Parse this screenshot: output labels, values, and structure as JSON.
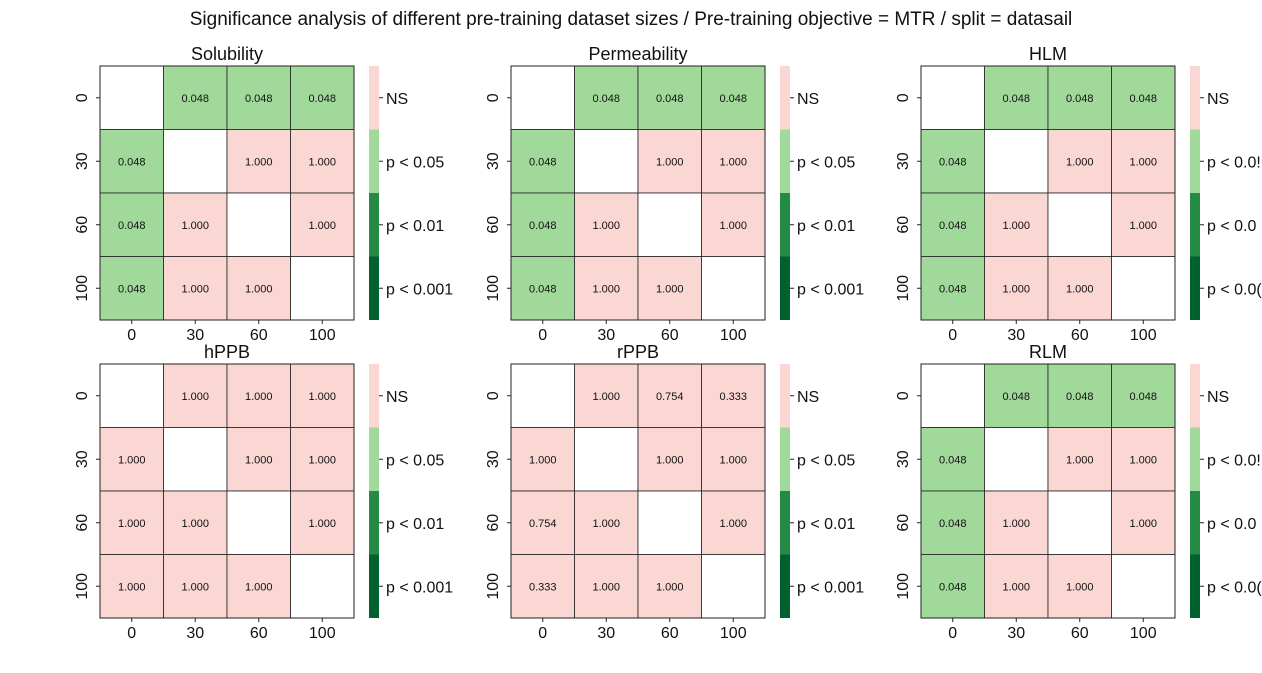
{
  "figure": {
    "title": "Significance analysis of different pre-training dataset sizes / Pre-training objective = MTR / split = datasail"
  },
  "legend": {
    "levels": [
      "NS",
      "p < 0.05",
      "p < 0.01",
      "p < 0.001"
    ],
    "colors": [
      "#fbd7d4",
      "#a1d99b",
      "#238b45",
      "#00602f"
    ],
    "diagonal_color": "#ffffff",
    "panels_with_clipped_labels": [
      "HLM",
      "RLM"
    ],
    "clipped_levels": [
      "NS",
      "p < 0.0!",
      "p < 0.0",
      "p < 0.0("
    ]
  },
  "chart_data": [
    {
      "type": "heatmap",
      "title": "Solubility",
      "x_categories": [
        "0",
        "30",
        "60",
        "100"
      ],
      "y_categories": [
        "0",
        "30",
        "60",
        "100"
      ],
      "values": [
        [
          null,
          0.048,
          0.048,
          0.048
        ],
        [
          0.048,
          null,
          1.0,
          1.0
        ],
        [
          0.048,
          1.0,
          null,
          1.0
        ],
        [
          0.048,
          1.0,
          1.0,
          null
        ]
      ],
      "labels": [
        [
          "",
          "0.048",
          "0.048",
          "0.048"
        ],
        [
          "0.048",
          "",
          "1.000",
          "1.000"
        ],
        [
          "0.048",
          "1.000",
          "",
          "1.000"
        ],
        [
          "0.048",
          "1.000",
          "1.000",
          ""
        ]
      ],
      "legend": [
        "NS",
        "p < 0.05",
        "p < 0.01",
        "p < 0.001"
      ]
    },
    {
      "type": "heatmap",
      "title": "Permeability",
      "x_categories": [
        "0",
        "30",
        "60",
        "100"
      ],
      "y_categories": [
        "0",
        "30",
        "60",
        "100"
      ],
      "values": [
        [
          null,
          0.048,
          0.048,
          0.048
        ],
        [
          0.048,
          null,
          1.0,
          1.0
        ],
        [
          0.048,
          1.0,
          null,
          1.0
        ],
        [
          0.048,
          1.0,
          1.0,
          null
        ]
      ],
      "labels": [
        [
          "",
          "0.048",
          "0.048",
          "0.048"
        ],
        [
          "0.048",
          "",
          "1.000",
          "1.000"
        ],
        [
          "0.048",
          "1.000",
          "",
          "1.000"
        ],
        [
          "0.048",
          "1.000",
          "1.000",
          ""
        ]
      ],
      "legend": [
        "NS",
        "p < 0.05",
        "p < 0.01",
        "p < 0.001"
      ]
    },
    {
      "type": "heatmap",
      "title": "HLM",
      "x_categories": [
        "0",
        "30",
        "60",
        "100"
      ],
      "y_categories": [
        "0",
        "30",
        "60",
        "100"
      ],
      "values": [
        [
          null,
          0.048,
          0.048,
          0.048
        ],
        [
          0.048,
          null,
          1.0,
          1.0
        ],
        [
          0.048,
          1.0,
          null,
          1.0
        ],
        [
          0.048,
          1.0,
          1.0,
          null
        ]
      ],
      "labels": [
        [
          "",
          "0.048",
          "0.048",
          "0.048"
        ],
        [
          "0.048",
          "",
          "1.000",
          "1.000"
        ],
        [
          "0.048",
          "1.000",
          "",
          "1.000"
        ],
        [
          "0.048",
          "1.000",
          "1.000",
          ""
        ]
      ],
      "legend": [
        "NS",
        "p < 0.0!",
        "p < 0.0",
        "p < 0.0("
      ]
    },
    {
      "type": "heatmap",
      "title": "hPPB",
      "x_categories": [
        "0",
        "30",
        "60",
        "100"
      ],
      "y_categories": [
        "0",
        "30",
        "60",
        "100"
      ],
      "values": [
        [
          null,
          1.0,
          1.0,
          1.0
        ],
        [
          1.0,
          null,
          1.0,
          1.0
        ],
        [
          1.0,
          1.0,
          null,
          1.0
        ],
        [
          1.0,
          1.0,
          1.0,
          null
        ]
      ],
      "labels": [
        [
          "",
          "1.000",
          "1.000",
          "1.000"
        ],
        [
          "1.000",
          "",
          "1.000",
          "1.000"
        ],
        [
          "1.000",
          "1.000",
          "",
          "1.000"
        ],
        [
          "1.000",
          "1.000",
          "1.000",
          ""
        ]
      ],
      "legend": [
        "NS",
        "p < 0.05",
        "p < 0.01",
        "p < 0.001"
      ]
    },
    {
      "type": "heatmap",
      "title": "rPPB",
      "x_categories": [
        "0",
        "30",
        "60",
        "100"
      ],
      "y_categories": [
        "0",
        "30",
        "60",
        "100"
      ],
      "values": [
        [
          null,
          1.0,
          0.754,
          0.333
        ],
        [
          1.0,
          null,
          1.0,
          1.0
        ],
        [
          0.754,
          1.0,
          null,
          1.0
        ],
        [
          0.333,
          1.0,
          1.0,
          null
        ]
      ],
      "labels": [
        [
          "",
          "1.000",
          "0.754",
          "0.333"
        ],
        [
          "1.000",
          "",
          "1.000",
          "1.000"
        ],
        [
          "0.754",
          "1.000",
          "",
          "1.000"
        ],
        [
          "0.333",
          "1.000",
          "1.000",
          ""
        ]
      ],
      "legend": [
        "NS",
        "p < 0.05",
        "p < 0.01",
        "p < 0.001"
      ]
    },
    {
      "type": "heatmap",
      "title": "RLM",
      "x_categories": [
        "0",
        "30",
        "60",
        "100"
      ],
      "y_categories": [
        "0",
        "30",
        "60",
        "100"
      ],
      "values": [
        [
          null,
          0.048,
          0.048,
          0.048
        ],
        [
          0.048,
          null,
          1.0,
          1.0
        ],
        [
          0.048,
          1.0,
          null,
          1.0
        ],
        [
          0.048,
          1.0,
          1.0,
          null
        ]
      ],
      "labels": [
        [
          "",
          "0.048",
          "0.048",
          "0.048"
        ],
        [
          "0.048",
          "",
          "1.000",
          "1.000"
        ],
        [
          "0.048",
          "1.000",
          "",
          "1.000"
        ],
        [
          "0.048",
          "1.000",
          "1.000",
          ""
        ]
      ],
      "legend": [
        "NS",
        "p < 0.0!",
        "p < 0.0",
        "p < 0.0("
      ]
    }
  ]
}
